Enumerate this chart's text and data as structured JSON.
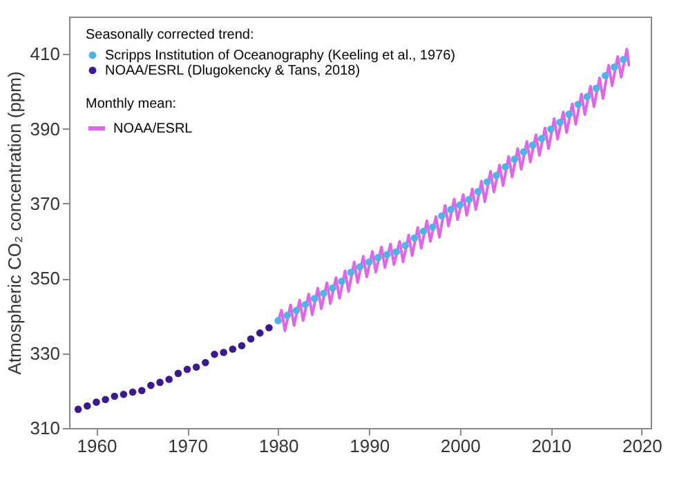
{
  "chart_data": {
    "type": "line",
    "ylabel": "Atmospheric CO₂ concentration (ppm)",
    "legend_title": "Seasonally corrected trend:",
    "annotations": [
      "Monthly mean:"
    ],
    "xlim": [
      1957,
      2021
    ],
    "ylim": [
      310,
      420
    ],
    "xticks": [
      1960,
      1970,
      1980,
      1990,
      2000,
      2010,
      2020
    ],
    "yticks": [
      310,
      330,
      350,
      370,
      390,
      410
    ],
    "legend": "top left",
    "grid": false,
    "series": [
      {
        "name": "NOAA/ESRL",
        "type": "line",
        "color": "#e066e8",
        "x": [
          1980.0,
          1980.37,
          1980.75,
          1981.37,
          1981.75,
          1982.37,
          1982.75,
          1983.37,
          1983.75,
          1984.37,
          1984.75,
          1985.37,
          1985.75,
          1986.37,
          1986.75,
          1987.37,
          1987.75,
          1988.37,
          1988.75,
          1989.37,
          1989.75,
          1990.37,
          1990.75,
          1991.37,
          1991.75,
          1992.37,
          1992.75,
          1993.37,
          1993.75,
          1994.37,
          1994.75,
          1995.37,
          1995.75,
          1996.37,
          1996.75,
          1997.37,
          1997.75,
          1998.37,
          1998.75,
          1999.37,
          1999.75,
          2000.37,
          2000.75,
          2001.37,
          2001.75,
          2002.37,
          2002.75,
          2003.37,
          2003.75,
          2004.37,
          2004.75,
          2005.37,
          2005.75,
          2006.37,
          2006.75,
          2007.37,
          2007.75,
          2008.37,
          2008.75,
          2009.37,
          2009.75,
          2010.37,
          2010.75,
          2011.37,
          2011.75,
          2012.37,
          2012.75,
          2013.37,
          2013.75,
          2014.37,
          2014.75,
          2015.37,
          2015.75,
          2016.37,
          2016.75,
          2017.37,
          2017.75,
          2018.37,
          2018.6
        ],
        "values": [
          338.5,
          341.5,
          336.0,
          342.9,
          337.4,
          344.2,
          338.7,
          345.8,
          340.3,
          347.4,
          341.9,
          348.8,
          343.3,
          350.2,
          344.7,
          352.0,
          346.5,
          354.4,
          348.9,
          355.9,
          350.4,
          357.2,
          351.7,
          358.4,
          352.9,
          359.2,
          353.7,
          359.9,
          354.4,
          361.6,
          356.1,
          363.6,
          358.1,
          365.4,
          359.9,
          366.5,
          361.0,
          369.5,
          364.0,
          371.2,
          365.7,
          372.4,
          366.9,
          373.9,
          368.4,
          376.0,
          370.5,
          378.6,
          373.1,
          380.3,
          374.8,
          382.6,
          377.1,
          384.7,
          379.2,
          386.6,
          381.1,
          388.4,
          382.9,
          390.2,
          384.7,
          392.7,
          387.2,
          394.5,
          389.0,
          396.7,
          391.2,
          399.3,
          393.8,
          401.4,
          395.9,
          403.6,
          398.1,
          407.0,
          401.5,
          409.3,
          403.8,
          411.3,
          407.0
        ]
      },
      {
        "name": "Scripps Institution of Oceanography (Keeling et al., 1976)",
        "type": "scatter",
        "color": "#4fb3e6",
        "x": [
          1980,
          1981,
          1982,
          1983,
          1984,
          1985,
          1986,
          1987,
          1988,
          1989,
          1990,
          1991,
          1992,
          1993,
          1994,
          1995,
          1996,
          1997,
          1998,
          1999,
          2000,
          2001,
          2002,
          2003,
          2004,
          2005,
          2006,
          2007,
          2008,
          2009,
          2010,
          2011,
          2012,
          2013,
          2014,
          2015,
          2016,
          2017,
          2018
        ],
        "values": [
          338.7,
          340.1,
          341.4,
          343.0,
          344.6,
          346.0,
          347.4,
          349.2,
          351.6,
          353.1,
          354.4,
          355.6,
          356.4,
          357.1,
          358.8,
          360.8,
          362.6,
          363.7,
          366.7,
          368.4,
          369.6,
          371.1,
          373.2,
          375.8,
          377.5,
          379.8,
          381.9,
          383.8,
          385.6,
          387.4,
          389.9,
          391.7,
          393.9,
          396.5,
          398.6,
          400.8,
          404.2,
          406.5,
          408.5
        ]
      },
      {
        "name": "NOAA/ESRL (Dlugokencky & Tans, 2018)",
        "type": "scatter",
        "color": "#3b1a8c",
        "x": [
          1958,
          1959,
          1960,
          1961,
          1962,
          1963,
          1964,
          1965,
          1966,
          1967,
          1968,
          1969,
          1970,
          1971,
          1972,
          1973,
          1974,
          1975,
          1976,
          1977,
          1978,
          1979
        ],
        "values": [
          315.0,
          315.9,
          316.9,
          317.6,
          318.5,
          319.0,
          319.6,
          320.0,
          321.4,
          322.2,
          323.0,
          324.6,
          325.7,
          326.3,
          327.5,
          329.7,
          330.2,
          331.1,
          332.0,
          333.8,
          335.4,
          336.8
        ]
      }
    ]
  }
}
